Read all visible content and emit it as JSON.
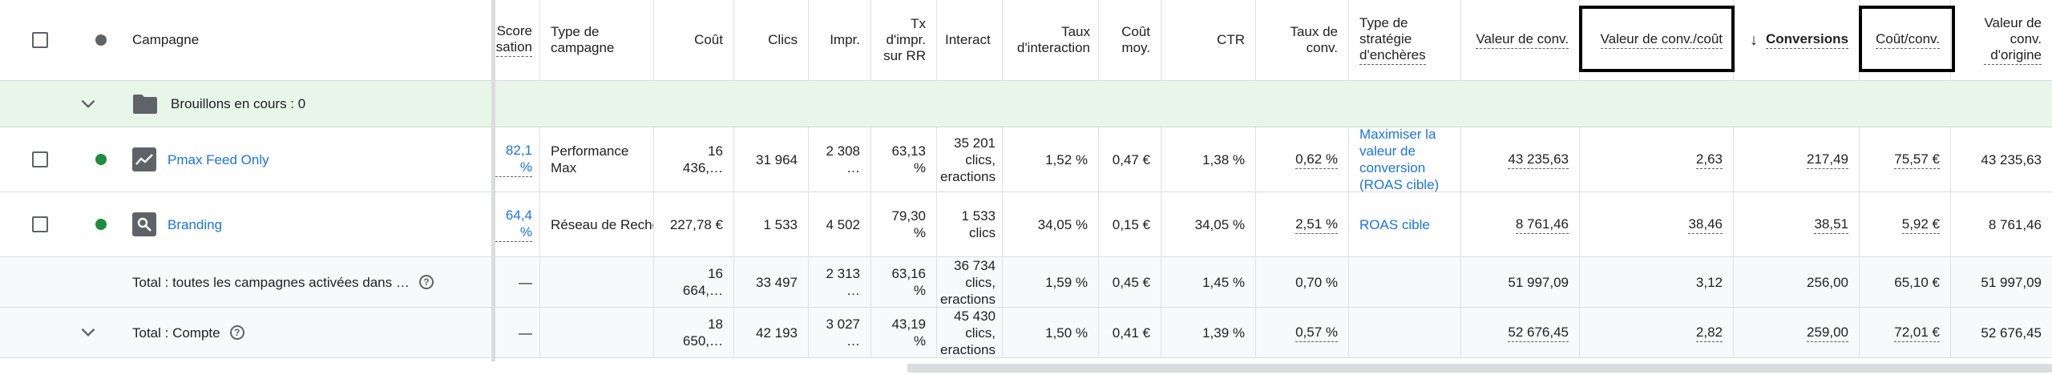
{
  "header": {
    "campaign": "Campagne",
    "score": [
      "Score",
      "sation"
    ],
    "type": [
      "Type de",
      "campagne"
    ],
    "cost": "Coût",
    "clicks": "Clics",
    "impr": "Impr.",
    "tx_impr": [
      "Tx",
      "d'impr.",
      "sur RR"
    ],
    "interactions": "Interact",
    "taux_inter": [
      "Taux",
      "d'interaction"
    ],
    "cout_moy": [
      "Coût",
      "moy."
    ],
    "ctr": "CTR",
    "taux_conv": [
      "Taux de",
      "conv."
    ],
    "bid_strategy": [
      "Type de",
      "stratégie",
      "d'enchères"
    ],
    "conv_value": "Valeur de conv.",
    "conv_value_cost": "Valeur de conv./coût",
    "conversions": "Conversions",
    "cost_conv": "Coût/conv.",
    "conv_value_orig": [
      "Valeur de",
      "conv.",
      "d'origine"
    ],
    "sort_arrow": "↓"
  },
  "drafts": {
    "label": "Brouillons en cours : 0"
  },
  "rows": [
    {
      "name": "Pmax Feed Only",
      "score": "82,1 %",
      "type": [
        "Performance",
        "Max"
      ],
      "cost": "16 436,…",
      "clicks": "31 964",
      "impr": "2 308 …",
      "tx_impr": "63,13 %",
      "interactions": [
        "35 201",
        "clics,",
        "eractions"
      ],
      "taux_inter": "1,52 %",
      "cout_moy": "0,47 €",
      "ctr": "1,38 %",
      "taux_conv": "0,62 %",
      "bid_strategy": [
        "Maximiser la",
        "valeur de",
        "conversion",
        "(ROAS cible)"
      ],
      "conv_value": "43 235,63",
      "conv_value_cost": "2,63",
      "conversions": "217,49",
      "cost_conv": "75,57 €",
      "conv_value_orig": "43 235,63"
    },
    {
      "name": "Branding",
      "score": "64,4 %",
      "type": [
        "Réseau de Reche"
      ],
      "cost": "227,78 €",
      "clicks": "1 533",
      "impr": "4 502",
      "tx_impr": "79,30 %",
      "interactions": [
        "1 533",
        "clics"
      ],
      "taux_inter": "34,05 %",
      "cout_moy": "0,15 €",
      "ctr": "34,05 %",
      "taux_conv": "2,51 %",
      "bid_strategy": [
        "ROAS cible"
      ],
      "conv_value": "8 761,46",
      "conv_value_cost": "38,46",
      "conversions": "38,51",
      "cost_conv": "5,92 €",
      "conv_value_orig": "8 761,46"
    }
  ],
  "totals": [
    {
      "label": "Total : toutes les campagnes activées dans …",
      "score": "—",
      "cost": "16 664,…",
      "clicks": "33 497",
      "impr": "2 313 …",
      "tx_impr": "63,16 %",
      "interactions": [
        "36 734",
        "clics,",
        "eractions"
      ],
      "taux_inter": "1,59 %",
      "cout_moy": "0,45 €",
      "ctr": "1,45 %",
      "taux_conv": "0,70 %",
      "conv_value": "51 997,09",
      "conv_value_cost": "3,12",
      "conversions": "256,00",
      "cost_conv": "65,10 €",
      "conv_value_orig": "51 997,09"
    },
    {
      "label": "Total : Compte",
      "score": "—",
      "cost": "18 650,…",
      "clicks": "42 193",
      "impr": "3 027 …",
      "tx_impr": "43,19 %",
      "interactions": [
        "45 430",
        "clics,",
        "eractions"
      ],
      "taux_inter": "1,50 %",
      "cout_moy": "0,41 €",
      "ctr": "1,39 %",
      "taux_conv": "0,57 %",
      "conv_value": "52 676,45",
      "conv_value_cost": "2,82",
      "conversions": "259,00",
      "cost_conv": "72,01 €",
      "conv_value_orig": "52 676,45"
    }
  ],
  "colors": {
    "link": "#1a73e8",
    "status_enabled": "#1e8e3e",
    "drafts_bg": "#e8f5e9"
  },
  "icons": {
    "status_header": "status-dot-icon",
    "drafts": "folder-icon",
    "pmax": "performance-chart-icon",
    "branding": "search-campaign-icon",
    "help": "help-circle-icon",
    "expand": "chevron-down-icon"
  }
}
